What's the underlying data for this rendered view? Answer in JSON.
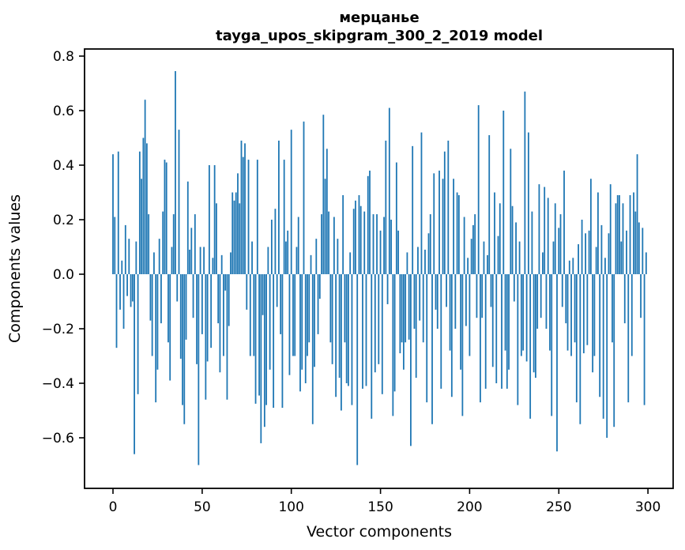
{
  "figure": {
    "background": "#ffffff",
    "text_color": "#000000",
    "spine_color": "#000000"
  },
  "chart_data": {
    "type": "bar",
    "title": "мерцанье",
    "subtitle": "tayga_upos_skipgram_300_2_2019 model",
    "xlabel": "Vector components",
    "ylabel": "Components values",
    "bar_color": "#1f77b4",
    "grid": false,
    "legend": null,
    "n_bars": 300,
    "xlim": [
      -16,
      314
    ],
    "ylim": [
      -0.786,
      0.826
    ],
    "x_ticks": [
      {
        "label": "0",
        "value": 0
      },
      {
        "label": "50",
        "value": 50
      },
      {
        "label": "100",
        "value": 100
      },
      {
        "label": "150",
        "value": 150
      },
      {
        "label": "200",
        "value": 200
      },
      {
        "label": "250",
        "value": 250
      },
      {
        "label": "300",
        "value": 300
      }
    ],
    "y_ticks": [
      {
        "label": "0.8",
        "value": 0.8
      },
      {
        "label": "0.6",
        "value": 0.6
      },
      {
        "label": "0.4",
        "value": 0.4
      },
      {
        "label": "0.2",
        "value": 0.2
      },
      {
        "label": "0.0",
        "value": 0.0
      },
      {
        "label": "−0.2",
        "value": -0.2
      },
      {
        "label": "−0.4",
        "value": -0.4
      },
      {
        "label": "−0.6",
        "value": -0.6
      }
    ],
    "values": [
      0.44,
      0.21,
      -0.27,
      0.45,
      -0.13,
      0.05,
      -0.2,
      0.18,
      -0.08,
      0.13,
      -0.12,
      -0.1,
      -0.66,
      0.12,
      -0.44,
      0.45,
      0.35,
      0.5,
      0.64,
      0.48,
      0.22,
      -0.17,
      -0.3,
      0.08,
      -0.47,
      -0.35,
      0.13,
      -0.18,
      0.23,
      0.42,
      0.41,
      -0.25,
      -0.39,
      0.1,
      0.22,
      0.745,
      -0.1,
      0.53,
      -0.31,
      -0.48,
      -0.55,
      -0.24,
      0.34,
      0.09,
      0.17,
      -0.16,
      0.22,
      -0.33,
      -0.7,
      0.1,
      -0.22,
      0.1,
      -0.46,
      -0.32,
      0.4,
      -0.27,
      0.06,
      0.4,
      0.26,
      -0.18,
      -0.36,
      0.07,
      -0.3,
      -0.06,
      -0.46,
      -0.19,
      0.08,
      0.3,
      0.27,
      0.3,
      0.37,
      0.26,
      0.49,
      0.43,
      0.48,
      -0.13,
      0.42,
      -0.3,
      0.12,
      -0.3,
      -0.475,
      0.42,
      -0.445,
      -0.62,
      -0.15,
      -0.56,
      -0.48,
      0.1,
      -0.35,
      0.2,
      -0.49,
      0.24,
      -0.12,
      0.49,
      -0.22,
      -0.49,
      0.42,
      0.12,
      0.16,
      -0.37,
      0.53,
      -0.3,
      -0.3,
      0.1,
      0.21,
      -0.43,
      -0.35,
      0.56,
      -0.4,
      -0.3,
      -0.25,
      0.07,
      -0.55,
      -0.34,
      0.13,
      -0.22,
      -0.09,
      0.22,
      0.585,
      0.35,
      0.46,
      0.23,
      -0.25,
      -0.33,
      0.21,
      -0.45,
      0.13,
      -0.38,
      -0.5,
      0.29,
      -0.25,
      -0.4,
      -0.41,
      0.08,
      -0.48,
      0.24,
      0.27,
      -0.7,
      0.29,
      0.25,
      -0.42,
      0.23,
      -0.41,
      0.36,
      0.38,
      -0.53,
      0.22,
      -0.36,
      0.22,
      -0.33,
      0.16,
      -0.44,
      0.21,
      0.49,
      -0.11,
      0.61,
      0.2,
      -0.52,
      -0.43,
      0.41,
      0.16,
      -0.29,
      -0.25,
      -0.35,
      -0.25,
      0.08,
      -0.24,
      -0.63,
      0.47,
      -0.2,
      -0.38,
      0.1,
      -0.17,
      0.52,
      -0.25,
      0.09,
      -0.47,
      0.15,
      0.22,
      -0.55,
      0.37,
      -0.13,
      -0.2,
      0.38,
      -0.42,
      0.35,
      0.45,
      -0.12,
      0.49,
      -0.28,
      -0.45,
      0.35,
      -0.2,
      0.3,
      0.29,
      -0.35,
      -0.52,
      0.21,
      -0.19,
      0.06,
      -0.3,
      0.13,
      0.18,
      0.22,
      -0.16,
      0.62,
      -0.47,
      -0.16,
      0.12,
      -0.42,
      0.07,
      0.51,
      -0.12,
      -0.34,
      0.3,
      -0.4,
      0.14,
      0.26,
      -0.42,
      0.6,
      -0.28,
      -0.42,
      -0.35,
      0.46,
      0.25,
      -0.1,
      0.19,
      -0.48,
      0.12,
      -0.3,
      -0.28,
      0.67,
      -0.32,
      0.52,
      -0.53,
      0.23,
      -0.36,
      -0.38,
      -0.2,
      0.33,
      -0.16,
      0.08,
      0.32,
      -0.2,
      0.28,
      -0.28,
      -0.52,
      0.12,
      0.26,
      -0.65,
      0.17,
      0.22,
      -0.12,
      0.38,
      -0.18,
      -0.28,
      0.05,
      -0.3,
      0.06,
      -0.25,
      -0.47,
      0.11,
      -0.55,
      0.2,
      -0.29,
      0.15,
      -0.26,
      0.16,
      0.35,
      -0.36,
      -0.3,
      0.1,
      0.3,
      -0.45,
      0.18,
      -0.53,
      0.06,
      -0.6,
      0.15,
      0.33,
      -0.25,
      -0.56,
      0.26,
      0.29,
      0.29,
      0.12,
      0.26,
      -0.18,
      0.16,
      -0.47,
      0.29,
      -0.3,
      0.3,
      0.23,
      0.44,
      0.19,
      -0.16,
      0.17,
      -0.48,
      0.08
    ]
  }
}
